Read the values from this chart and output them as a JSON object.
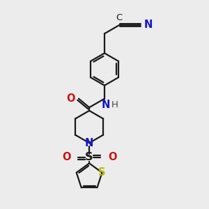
{
  "bg_color": "#ececec",
  "bond_color": "#1a1a1a",
  "N_color": "#1414cc",
  "O_color": "#cc1414",
  "S_color": "#b8b800",
  "H_color": "#444444",
  "line_width": 1.6,
  "font_size": 9.5,
  "fig_size": [
    3.0,
    3.0
  ],
  "dpi": 100,
  "xlim": [
    -2.5,
    2.5
  ],
  "ylim": [
    -5.5,
    4.5
  ]
}
